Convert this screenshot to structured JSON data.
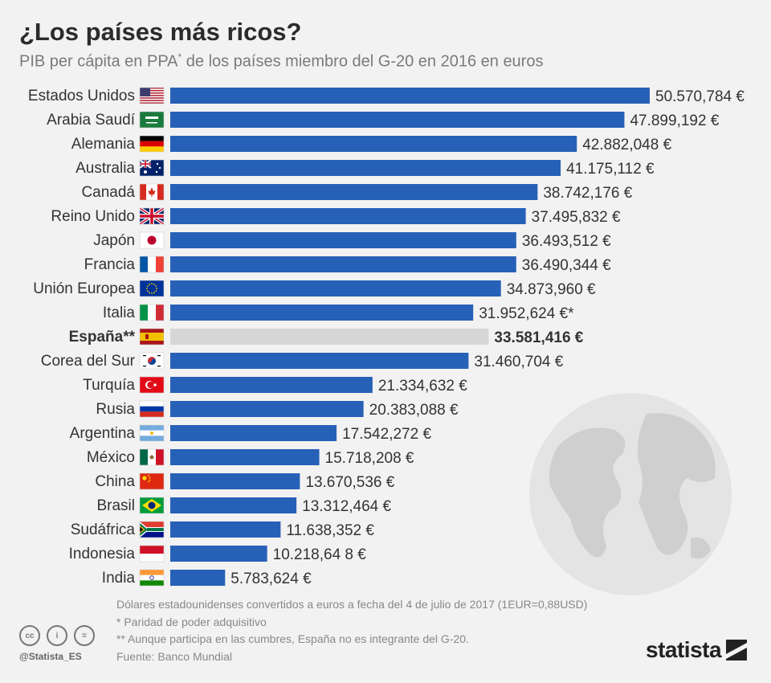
{
  "header": {
    "title": "¿Los países más ricos?",
    "subtitle": "PIB per cápita en PPA",
    "subtitle_mark": "*",
    "subtitle_rest": " de los países miembro del G-20 en 2016 en euros"
  },
  "colors": {
    "bar": "#2760b7",
    "bar_highlight": "#d6d6d6",
    "label": "#333333",
    "globe": "#d7d7d7"
  },
  "chart_data": {
    "type": "bar",
    "orientation": "horizontal",
    "xlim": [
      0,
      50570.784
    ],
    "categories": [
      "Estados Unidos",
      "Arabia Saudí",
      "Alemania",
      "Australia",
      "Canadá",
      "Reino Unido",
      "Japón",
      "Francia",
      "Unión Europea",
      "Italia",
      "España**",
      "Corea del Sur",
      "Turquía",
      "Rusia",
      "Argentina",
      "México",
      "China",
      "Brasil",
      "Sudáfrica",
      "Indonesia",
      "India"
    ],
    "values": [
      50570.784,
      47899.192,
      42882.048,
      41175.112,
      38742.176,
      37495.832,
      36493.512,
      36490.344,
      34873.96,
      31952.624,
      33581.416,
      31460.704,
      21334.632,
      20383.088,
      17542.272,
      15718.208,
      13670.536,
      13312.464,
      11638.352,
      10218.648,
      5783.624
    ],
    "value_labels": [
      "50.570,784 €",
      "47.899,192 €",
      "42.882,048 €",
      "41.175,112 €",
      "38.742,176 €",
      "37.495,832 €",
      "36.493,512 €",
      "36.490,344 €",
      "34.873,960 €",
      "31.952,624 €*",
      "33.581,416 €",
      "31.460,704 €",
      "21.334,632 €",
      "20.383,088 €",
      "17.542,272 €",
      "15.718,208 €",
      "13.670,536 €",
      "13.312,464 €",
      "11.638,352 €",
      "10.218,64 8 €",
      "5.783,624 €"
    ],
    "highlight": "España**",
    "flag_icons": [
      "us-flag-icon",
      "saudi-arabia-flag-icon",
      "germany-flag-icon",
      "australia-flag-icon",
      "canada-flag-icon",
      "uk-flag-icon",
      "japan-flag-icon",
      "france-flag-icon",
      "eu-flag-icon",
      "italy-flag-icon",
      "spain-flag-icon",
      "south-korea-flag-icon",
      "turkey-flag-icon",
      "russia-flag-icon",
      "argentina-flag-icon",
      "mexico-flag-icon",
      "china-flag-icon",
      "brazil-flag-icon",
      "south-africa-flag-icon",
      "indonesia-flag-icon",
      "india-flag-icon"
    ]
  },
  "footnotes": {
    "line1": "Dólares estadounidenses convertidos a euros a fecha del 4 de julio de 2017 (1EUR=0,88USD)",
    "line2": "*   Paridad de poder adquisitivo",
    "line3": "** Aunque participa en las cumbres, España no es integrante del G-20.",
    "line4": "Fuente: Banco Mundial"
  },
  "branding": {
    "handle": "@Statista_ES",
    "logo": "statista",
    "cc_icons": [
      "cc",
      "i",
      "="
    ]
  }
}
